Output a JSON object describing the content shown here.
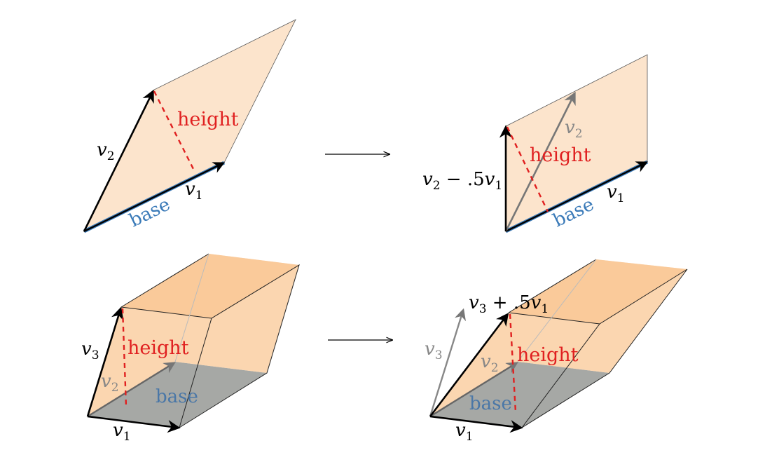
{
  "colors": {
    "fill": "#fce4cc",
    "fill_dark": "#f9c896",
    "base_shadow": "#a6a8a5",
    "black": "#000000",
    "gray_vec": "#808080",
    "base_blue": "#3a7ab8",
    "base_text": "#4a77a7",
    "height_red": "#e02020",
    "edge": "#333333"
  },
  "labels": {
    "v1": "v",
    "v1_sub": "1",
    "v2": "v",
    "v2_sub": "2",
    "v3": "v",
    "v3_sub": "3",
    "height": "height",
    "base": "base",
    "v2_minus_prefix": "v",
    "v2_minus_sub": "2",
    "v2_minus_mid": " − .5",
    "v2_minus_v": "v",
    "v2_minus_v_sub": "1",
    "v3_plus_prefix": "v",
    "v3_plus_sub": "3",
    "v3_plus_mid": " + .5",
    "v3_plus_v": "v",
    "v3_plus_v_sub": "1"
  },
  "arrows": {
    "top_transition": "",
    "bottom_transition": ""
  }
}
